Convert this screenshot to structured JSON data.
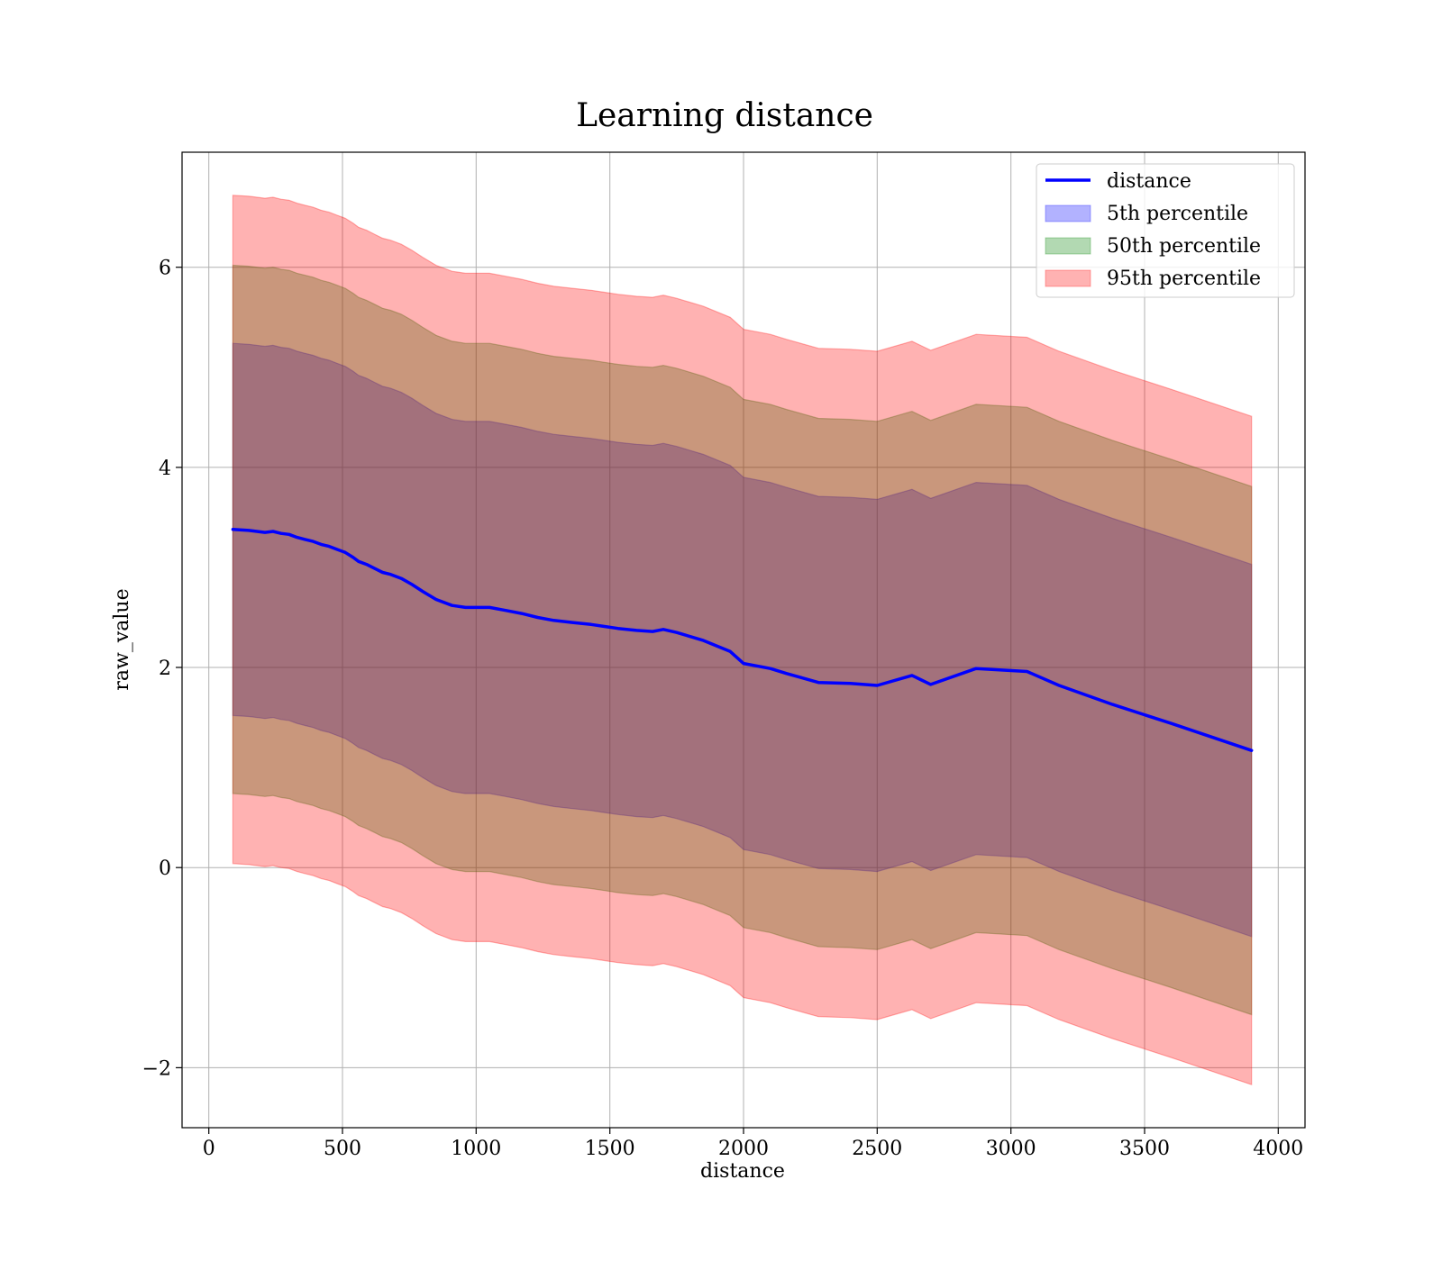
{
  "chart_data": {
    "type": "line",
    "title": "Learning distance",
    "xlabel": "distance",
    "ylabel": "raw_value",
    "xlim": [
      -100,
      4100
    ],
    "ylim": [
      -2.6,
      7.15
    ],
    "xticks": [
      0,
      500,
      1000,
      1500,
      2000,
      2500,
      3000,
      3500,
      4000
    ],
    "xtick_labels": [
      "0",
      "500",
      "1000",
      "1500",
      "2000",
      "2500",
      "3000",
      "3500",
      "4000"
    ],
    "yticks": [
      -2,
      0,
      2,
      4,
      6
    ],
    "ytick_labels": [
      "−2",
      "0",
      "2",
      "4",
      "6"
    ],
    "grid": true,
    "legend_position": "upper right",
    "x": [
      90,
      150,
      210,
      240,
      270,
      300,
      330,
      360,
      390,
      420,
      450,
      480,
      510,
      540,
      560,
      590,
      620,
      650,
      680,
      720,
      760,
      800,
      850,
      910,
      960,
      1000,
      1050,
      1110,
      1170,
      1230,
      1290,
      1360,
      1430,
      1480,
      1530,
      1600,
      1660,
      1700,
      1750,
      1850,
      1950,
      2000,
      2100,
      2160,
      2280,
      2400,
      2500,
      2630,
      2700,
      2870,
      3060,
      3180,
      3380,
      3600,
      3900
    ],
    "series": [
      {
        "name": "distance",
        "type": "line",
        "color": "#0000ff",
        "values": [
          3.38,
          3.37,
          3.35,
          3.36,
          3.34,
          3.33,
          3.3,
          3.28,
          3.26,
          3.23,
          3.21,
          3.18,
          3.15,
          3.1,
          3.06,
          3.03,
          2.99,
          2.95,
          2.93,
          2.89,
          2.83,
          2.76,
          2.68,
          2.62,
          2.6,
          2.6,
          2.6,
          2.57,
          2.54,
          2.5,
          2.47,
          2.45,
          2.43,
          2.41,
          2.39,
          2.37,
          2.36,
          2.38,
          2.35,
          2.27,
          2.16,
          2.04,
          1.99,
          1.94,
          1.85,
          1.84,
          1.82,
          1.92,
          1.83,
          1.99,
          1.96,
          1.82,
          1.63,
          1.44,
          1.17
        ]
      }
    ],
    "bands": [
      {
        "name": "5th percentile",
        "color": "#0000ff",
        "opacity": 0.3,
        "offset": 1.86
      },
      {
        "name": "50th percentile",
        "color": "#008000",
        "opacity": 0.3,
        "offset": 2.64
      },
      {
        "name": "95th percentile",
        "color": "#ff0000",
        "opacity": 0.3,
        "offset": 3.34
      }
    ]
  }
}
